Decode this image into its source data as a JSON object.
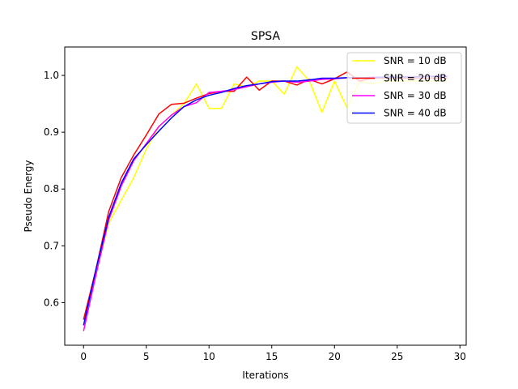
{
  "chart_data": {
    "type": "line",
    "title": "SPSA",
    "xlabel": "Iterations",
    "ylabel": "Pseudo Energy",
    "xlim": [
      -1.5,
      30.5
    ],
    "ylim": [
      0.525,
      1.05
    ],
    "xticks": [
      0,
      5,
      10,
      15,
      20,
      25,
      30
    ],
    "yticks": [
      0.6,
      0.7,
      0.8,
      0.9,
      1.0
    ],
    "xtick_labels": [
      "0",
      "5",
      "10",
      "15",
      "20",
      "25",
      "30"
    ],
    "ytick_labels": [
      "0.6",
      "0.7",
      "0.8",
      "0.9",
      "1.0"
    ],
    "grid": false,
    "legend_position": "top-right",
    "x": [
      0,
      1,
      2,
      3,
      4,
      5,
      6,
      7,
      8,
      9,
      10,
      11,
      12,
      13,
      14,
      15,
      16,
      17,
      18,
      19,
      20,
      21,
      22,
      23,
      24,
      25,
      26,
      27,
      28,
      29
    ],
    "series": [
      {
        "name": "SNR = 10 dB",
        "color": "#ffff00",
        "values": [
          0.57,
          0.65,
          0.74,
          0.78,
          0.82,
          0.87,
          0.91,
          0.93,
          0.95,
          0.985,
          0.942,
          0.942,
          0.985,
          0.98,
          0.99,
          0.99,
          0.967,
          1.015,
          0.99,
          0.935,
          0.99,
          0.943,
          0.99,
          0.985,
          0.99,
          0.99,
          0.99,
          0.99,
          0.99,
          0.99
        ]
      },
      {
        "name": "SNR = 20 dB",
        "color": "#ff0000",
        "values": [
          0.57,
          0.66,
          0.76,
          0.82,
          0.86,
          0.895,
          0.932,
          0.949,
          0.951,
          0.96,
          0.968,
          0.972,
          0.972,
          0.997,
          0.974,
          0.99,
          0.99,
          0.983,
          0.993,
          0.985,
          0.994,
          1.006,
          0.99,
          0.995,
          0.995,
          0.995,
          0.995,
          0.995,
          0.995,
          0.995
        ]
      },
      {
        "name": "SNR = 30 dB",
        "color": "#ff00ff",
        "values": [
          0.55,
          0.65,
          0.745,
          0.805,
          0.85,
          0.88,
          0.91,
          0.93,
          0.945,
          0.952,
          0.97,
          0.972,
          0.975,
          0.98,
          0.985,
          0.988,
          0.99,
          0.988,
          0.99,
          0.993,
          0.994,
          0.996,
          0.995,
          0.997,
          0.997,
          0.998,
          0.998,
          0.998,
          0.999,
          0.999
        ]
      },
      {
        "name": "SNR = 40 dB",
        "color": "#0000ff",
        "values": [
          0.56,
          0.66,
          0.75,
          0.81,
          0.853,
          0.878,
          0.902,
          0.925,
          0.945,
          0.957,
          0.965,
          0.97,
          0.977,
          0.982,
          0.985,
          0.989,
          0.99,
          0.99,
          0.992,
          0.995,
          0.995,
          0.996,
          0.996,
          0.996,
          0.997,
          0.997,
          0.997,
          0.998,
          0.998,
          0.998
        ]
      }
    ]
  }
}
